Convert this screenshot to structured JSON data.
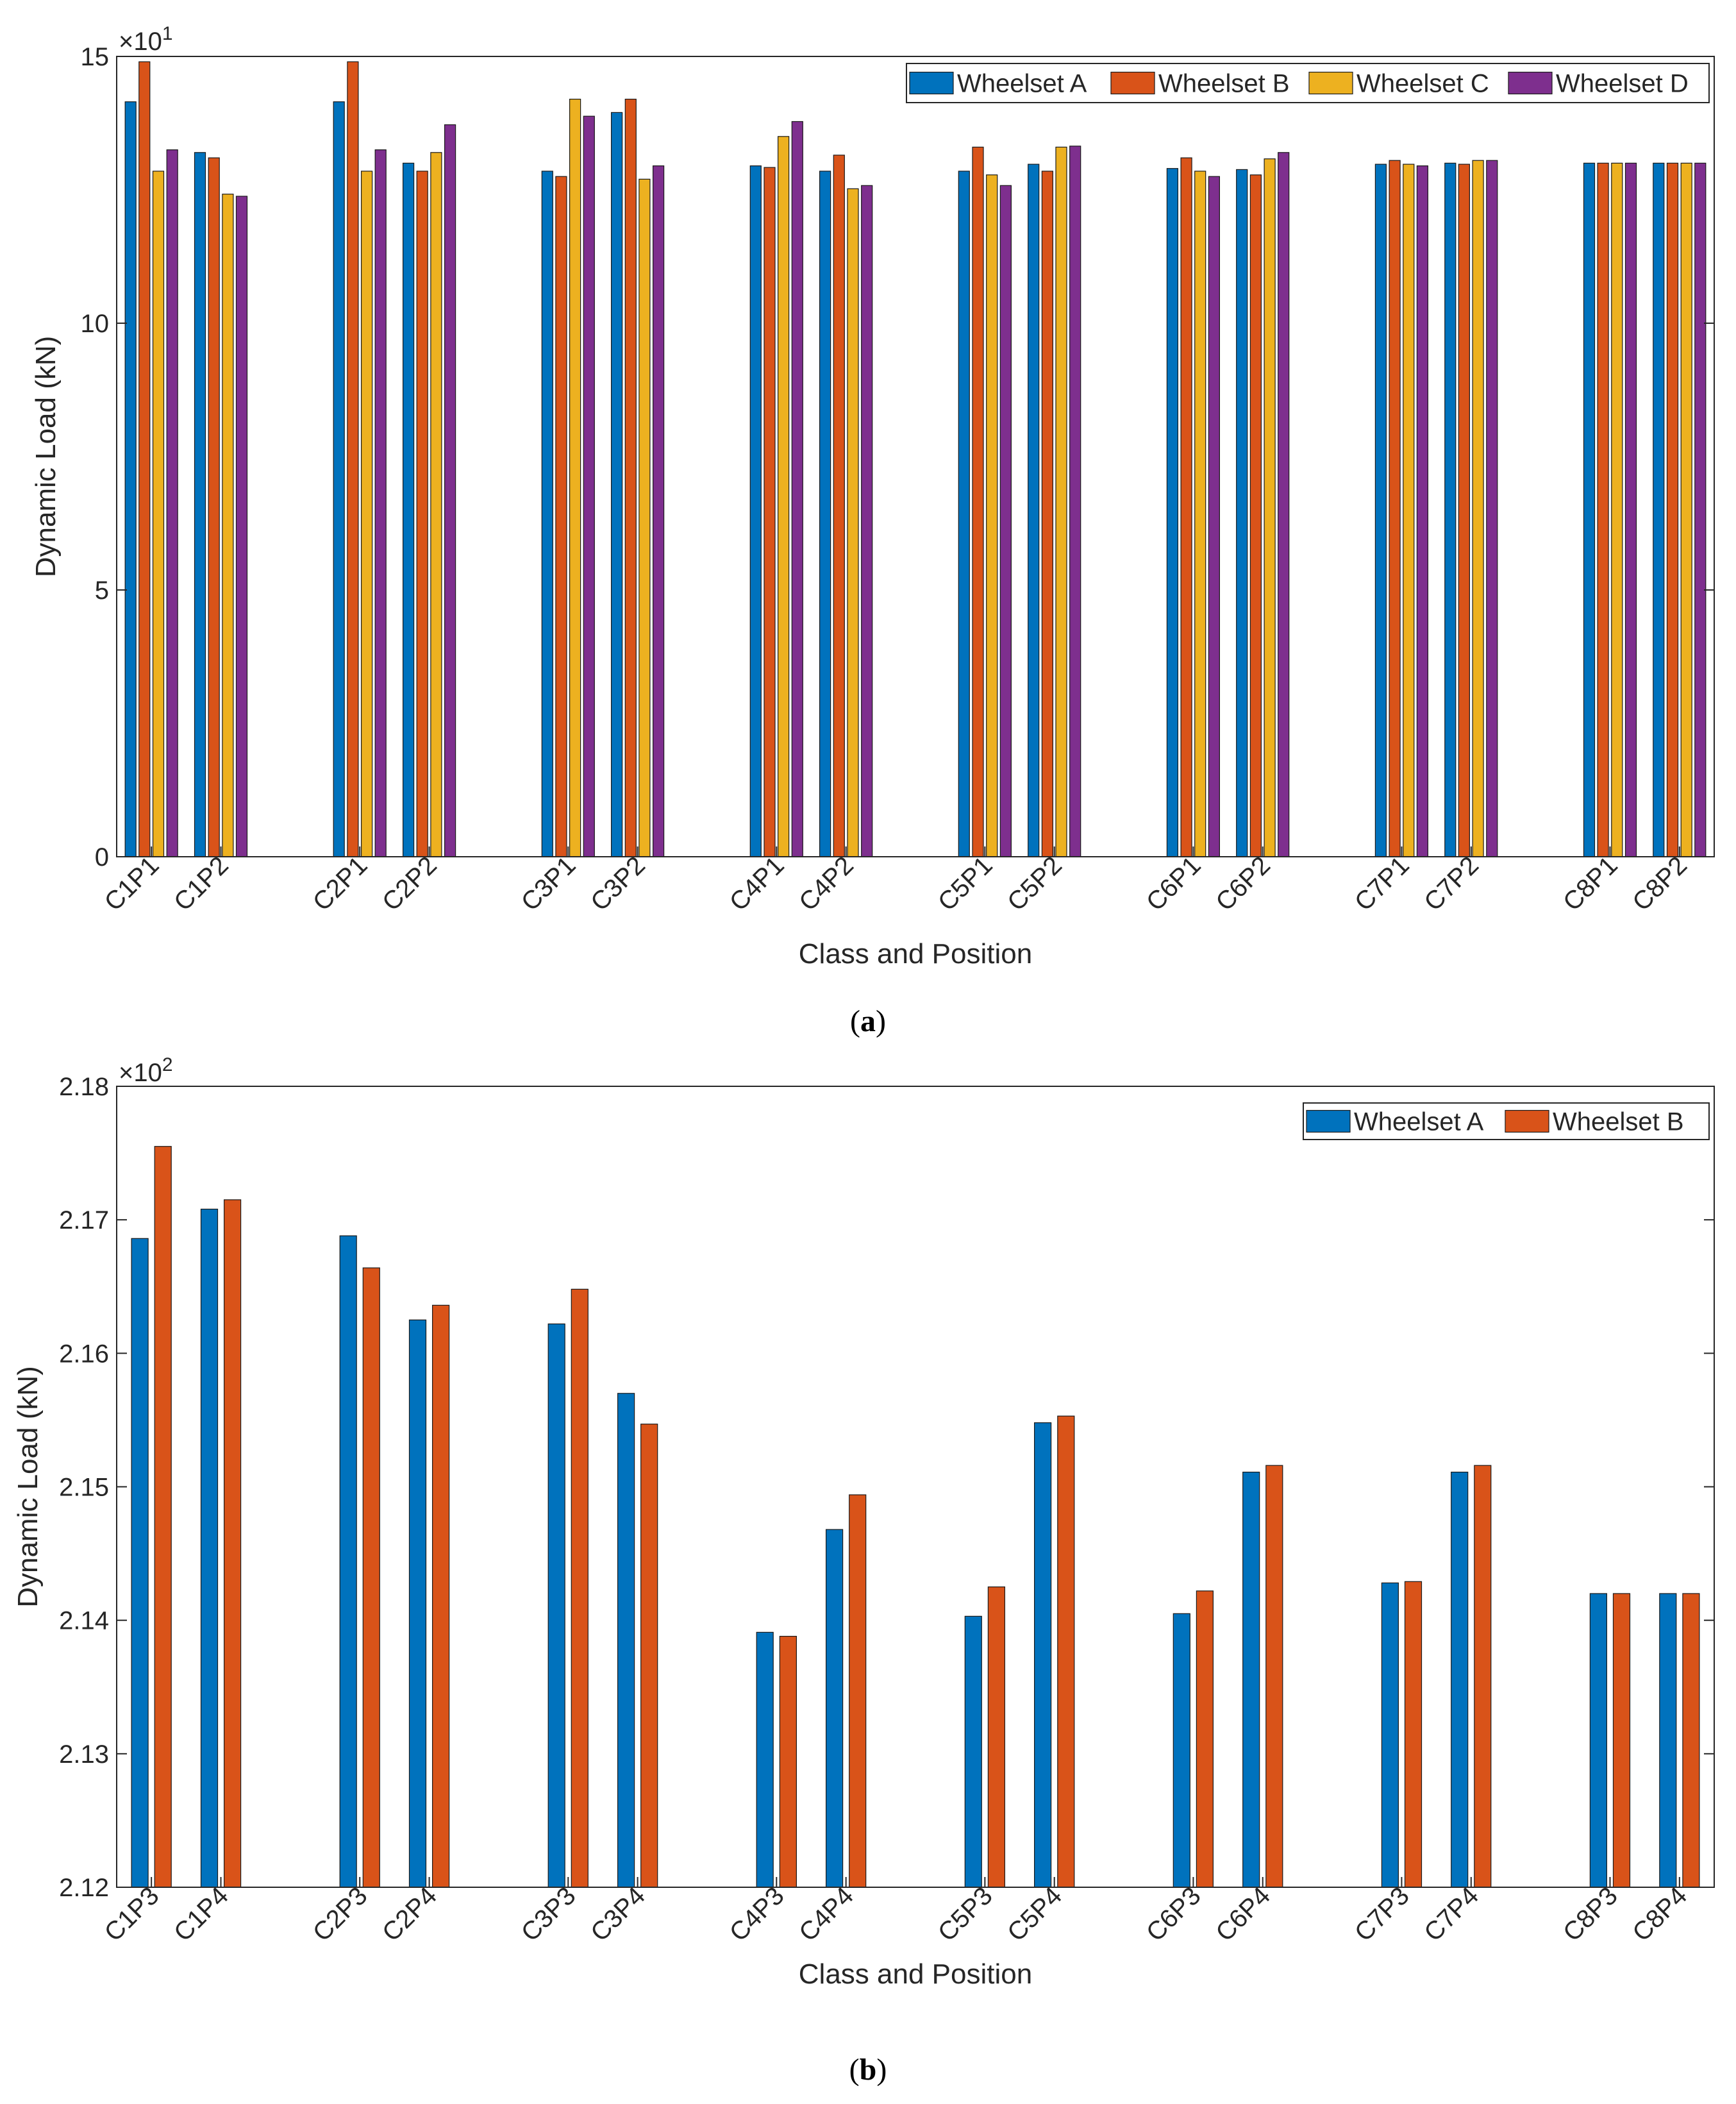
{
  "chart_data": [
    {
      "type": "bar",
      "panel_label": "a",
      "title": "",
      "xlabel": "Class and Position",
      "ylabel": "Dynamic Load (kN)",
      "exponent_label": "×10",
      "exponent_power": "1",
      "ylim": [
        0,
        15
      ],
      "yticks": [
        0,
        5,
        10,
        15
      ],
      "ytick_labels": [
        "0",
        "5",
        "10",
        "15"
      ],
      "legend_position": "top-right",
      "categories": [
        "C1P1",
        "C1P2",
        "",
        "C2P1",
        "C2P2",
        "",
        "C3P1",
        "C3P2",
        "",
        "C4P1",
        "C4P2",
        "",
        "C5P1",
        "C5P2",
        "",
        "C6P1",
        "C6P2",
        "",
        "C7P1",
        "C7P2",
        "",
        "C8P1",
        "C8P2"
      ],
      "series": [
        {
          "name": "Wheelset A",
          "color": "#0072BD",
          "values": [
            14.15,
            13.2,
            null,
            14.15,
            13.0,
            null,
            12.85,
            13.95,
            null,
            12.95,
            12.85,
            null,
            12.85,
            12.98,
            null,
            12.9,
            12.88,
            null,
            12.98,
            13.0,
            null,
            13.0,
            13.0
          ]
        },
        {
          "name": "Wheelset B",
          "color": "#D95319",
          "values": [
            14.9,
            13.1,
            null,
            14.9,
            12.85,
            null,
            12.75,
            14.2,
            null,
            12.92,
            13.15,
            null,
            13.3,
            12.85,
            null,
            13.1,
            12.78,
            null,
            13.05,
            12.98,
            null,
            13.0,
            13.0
          ]
        },
        {
          "name": "Wheelset C",
          "color": "#EDB120",
          "values": [
            12.85,
            12.42,
            null,
            12.85,
            13.2,
            null,
            14.2,
            12.7,
            null,
            13.5,
            12.52,
            null,
            12.78,
            13.3,
            null,
            12.85,
            13.08,
            null,
            12.98,
            13.05,
            null,
            13.0,
            13.0
          ]
        },
        {
          "name": "Wheelset D",
          "color": "#7E2F8E",
          "values": [
            13.25,
            12.38,
            null,
            13.25,
            13.72,
            null,
            13.88,
            12.95,
            null,
            13.78,
            12.58,
            null,
            12.58,
            13.32,
            null,
            12.75,
            13.2,
            null,
            12.95,
            13.05,
            null,
            13.0,
            13.0
          ]
        }
      ]
    },
    {
      "type": "bar",
      "panel_label": "b",
      "title": "",
      "xlabel": "Class and Position",
      "ylabel": "Dynamic Load (kN)",
      "exponent_label": "×10",
      "exponent_power": "2",
      "ylim": [
        2.12,
        2.18
      ],
      "yticks": [
        2.12,
        2.13,
        2.14,
        2.15,
        2.16,
        2.17,
        2.18
      ],
      "ytick_labels": [
        "2.12",
        "2.13",
        "2.14",
        "2.15",
        "2.16",
        "2.17",
        "2.18"
      ],
      "legend_position": "top-right",
      "categories": [
        "C1P3",
        "C1P4",
        "",
        "C2P3",
        "C2P4",
        "",
        "C3P3",
        "C3P4",
        "",
        "C4P3",
        "C4P4",
        "",
        "C5P3",
        "C5P4",
        "",
        "C6P3",
        "C6P4",
        "",
        "C7P3",
        "C7P4",
        "",
        "C8P3",
        "C8P4"
      ],
      "series": [
        {
          "name": "Wheelset A",
          "color": "#0072BD",
          "values": [
            2.1686,
            2.1708,
            null,
            2.1688,
            2.1625,
            null,
            2.1622,
            2.157,
            null,
            2.1391,
            2.1468,
            null,
            2.1403,
            2.1548,
            null,
            2.1405,
            2.1511,
            null,
            2.1428,
            2.1511,
            null,
            2.142,
            2.142
          ]
        },
        {
          "name": "Wheelset B",
          "color": "#D95319",
          "values": [
            2.1755,
            2.1715,
            null,
            2.1664,
            2.1636,
            null,
            2.1648,
            2.1547,
            null,
            2.1388,
            2.1494,
            null,
            2.1425,
            2.1553,
            null,
            2.1422,
            2.1516,
            null,
            2.1429,
            2.1516,
            null,
            2.142,
            2.142
          ]
        }
      ]
    }
  ]
}
